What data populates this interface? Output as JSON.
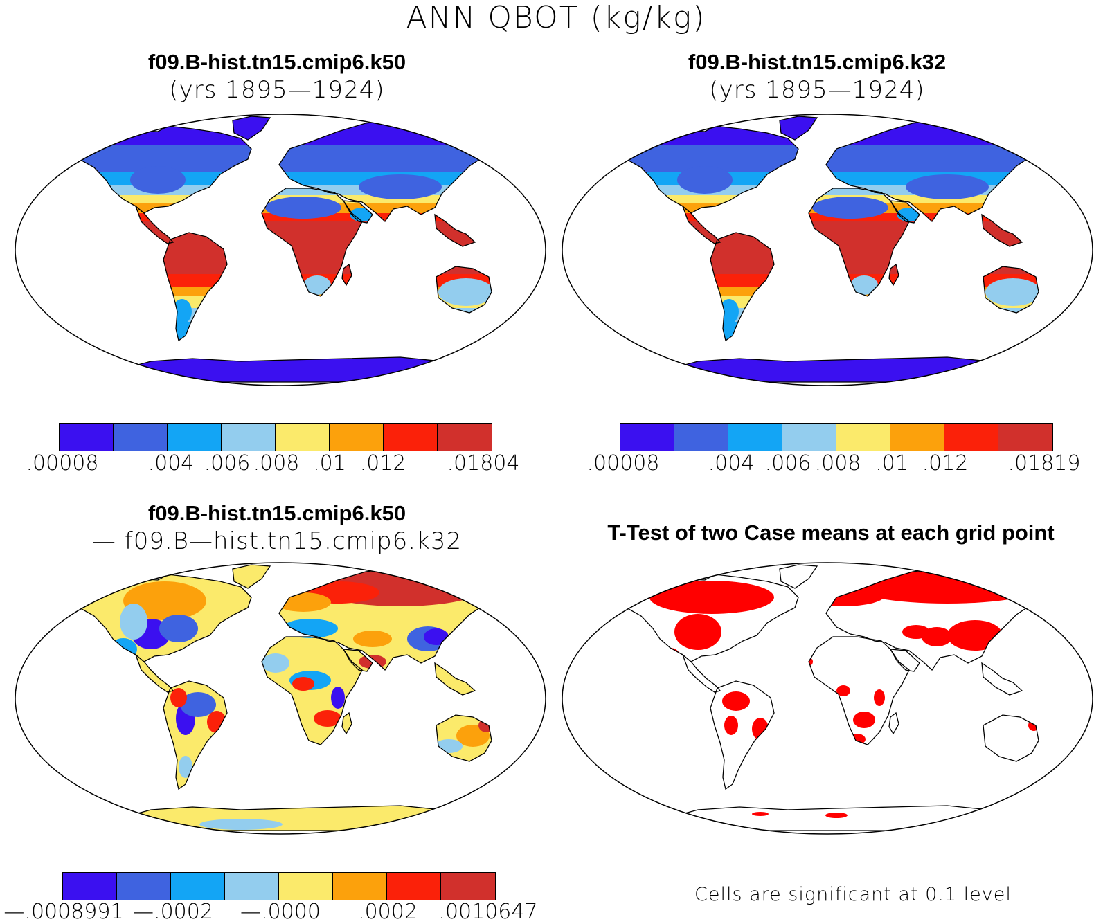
{
  "figure": {
    "title": "ANN QBOT (kg/kg)",
    "panels": [
      {
        "id": "k50",
        "title": "f09.B-hist.tn15.cmip6.k50",
        "subtitle": "(yrs 1895—1924)"
      },
      {
        "id": "k32",
        "title": "f09.B-hist.tn15.cmip6.k32",
        "subtitle": "(yrs 1895—1924)"
      },
      {
        "id": "diff",
        "title": "f09.B-hist.tn15.cmip6.k50",
        "subtitle": "— f09.B—hist.tn15.cmip6.k32"
      },
      {
        "id": "ttest",
        "title": "T-Test of two Case means at each grid point",
        "subtitle": ""
      }
    ],
    "note": "Cells are significant at 0.1 level"
  },
  "colors": {
    "levels": [
      "#3b10f0",
      "#3f63e0",
      "#13a5f5",
      "#93cdee",
      "#fbea6b",
      "#fca10c",
      "#fb2109",
      "#d1302c"
    ],
    "land_white": "#ffffff",
    "coast": "#000000",
    "significant": "#ff0000"
  },
  "colorbars": {
    "k50": [
      ".00008",
      ".004",
      ".006",
      ".008",
      ".01",
      ".012",
      ".01804"
    ],
    "k32": [
      ".00008",
      ".004",
      ".006",
      ".008",
      ".01",
      ".012",
      ".01819"
    ],
    "diff": [
      "—.0008991",
      "—.0002",
      "—.0000",
      ".0002",
      ".0010647"
    ]
  },
  "chart_data": [
    {
      "type": "heatmap",
      "title": "f09.B-hist.tn15.cmip6.k50",
      "subtitle": "(yrs 1895—1924)",
      "variable": "ANN QBOT",
      "units": "kg/kg",
      "projection": "Robinson world map",
      "colorbar_labels": [
        8e-05,
        0.004,
        0.006,
        0.008,
        0.01,
        0.012,
        0.01804
      ],
      "n_levels": 8
    },
    {
      "type": "heatmap",
      "title": "f09.B-hist.tn15.cmip6.k32",
      "subtitle": "(yrs 1895—1924)",
      "variable": "ANN QBOT",
      "units": "kg/kg",
      "projection": "Robinson world map",
      "colorbar_labels": [
        8e-05,
        0.004,
        0.006,
        0.008,
        0.01,
        0.012,
        0.01819
      ],
      "n_levels": 8
    },
    {
      "type": "heatmap",
      "title": "f09.B-hist.tn15.cmip6.k50 — f09.B—hist.tn15.cmip6.k32",
      "variable": "ANN QBOT difference",
      "units": "kg/kg",
      "projection": "Robinson world map",
      "colorbar_labels": [
        -0.0008991,
        -0.0002,
        -0.0,
        0.0002,
        0.0010647
      ],
      "n_levels": 8
    },
    {
      "type": "heatmap",
      "title": "T-Test of two Case means at each grid point",
      "projection": "Robinson world map",
      "significance_level": 0.1,
      "legend": "Cells are significant at 0.1 level"
    }
  ]
}
